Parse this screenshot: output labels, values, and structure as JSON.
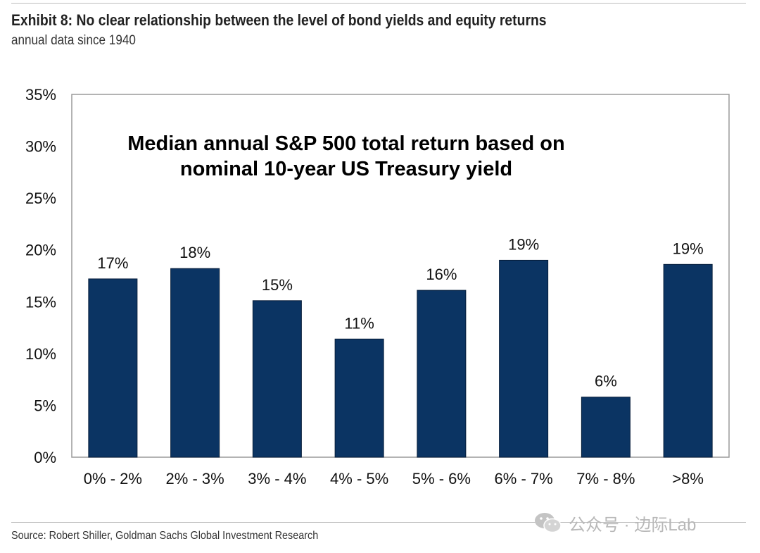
{
  "header": {
    "title": "Exhibit 8: No clear relationship between the level of bond yields and equity returns",
    "subtitle": "annual data since 1940"
  },
  "footer": {
    "source": "Source: Robert Shiller, Goldman Sachs Global Investment Research"
  },
  "watermark": {
    "text": "公众号 · 边际Lab",
    "icon": "wechat-icon"
  },
  "chart_data": {
    "type": "bar",
    "title": "Median annual S&P 500 total return based on nominal 10-year US Treasury yield",
    "title_lines": [
      "Median annual S&P 500 total return based on",
      "nominal 10-year US Treasury yield"
    ],
    "categories": [
      "0% - 2%",
      "2% - 3%",
      "3% - 4%",
      "4% - 5%",
      "5% - 6%",
      "6% - 7%",
      "7% - 8%",
      ">8%"
    ],
    "values": [
      17.2,
      18.2,
      15.1,
      11.4,
      16.1,
      19.0,
      5.8,
      18.6
    ],
    "data_labels": [
      "17%",
      "18%",
      "15%",
      "11%",
      "16%",
      "19%",
      "6%",
      "19%"
    ],
    "y_ticks": [
      0,
      5,
      10,
      15,
      20,
      25,
      30,
      35
    ],
    "y_tick_labels": [
      "0%",
      "5%",
      "10%",
      "15%",
      "20%",
      "25%",
      "30%",
      "35%"
    ],
    "ylim": [
      0,
      35
    ],
    "xlabel": "",
    "ylabel": "",
    "grid": false,
    "bar_color": "#0b3463"
  }
}
